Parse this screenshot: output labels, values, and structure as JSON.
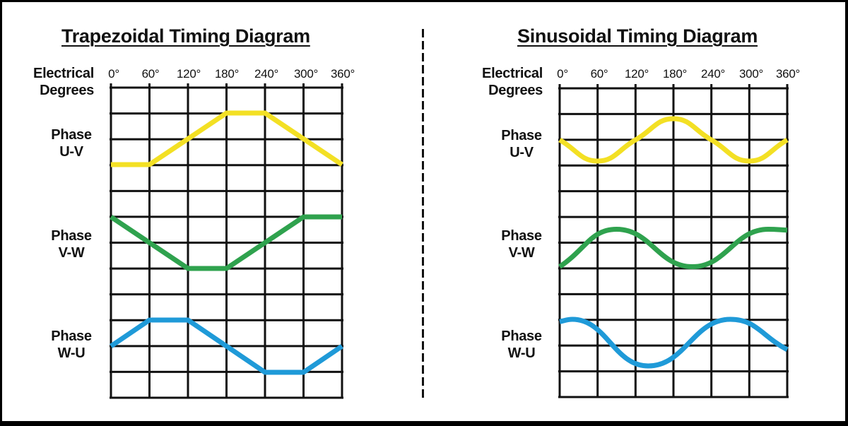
{
  "left_panel": {
    "title": "Trapezoidal Timing Diagram",
    "axis_label_line1": "Electrical",
    "axis_label_line2": "Degrees",
    "ticks": [
      "0°",
      "60°",
      "120°",
      "180°",
      "240°",
      "300°",
      "360°"
    ],
    "phases": [
      {
        "line1": "Phase",
        "line2": "U-V"
      },
      {
        "line1": "Phase",
        "line2": "V-W"
      },
      {
        "line1": "Phase",
        "line2": "W-U"
      }
    ]
  },
  "right_panel": {
    "title": "Sinusoidal Timing Diagram",
    "axis_label_line1": "Electrical",
    "axis_label_line2": "Degrees",
    "ticks": [
      "0°",
      "60°",
      "120°",
      "180°",
      "240°",
      "300°",
      "360°"
    ],
    "phases": [
      {
        "line1": "Phase",
        "line2": "U-V"
      },
      {
        "line1": "Phase",
        "line2": "V-W"
      },
      {
        "line1": "Phase",
        "line2": "W-U"
      }
    ]
  },
  "colors": {
    "phase_uv": "#F3E024",
    "phase_vw": "#2FA24E",
    "phase_wu": "#1F9AD8",
    "grid": "#111111"
  },
  "chart_data": [
    {
      "type": "line",
      "title": "Trapezoidal Timing Diagram",
      "xlabel": "Electrical Degrees",
      "x": [
        0,
        60,
        120,
        180,
        240,
        300,
        360
      ],
      "grid": {
        "columns": 6,
        "rows": 12
      },
      "series": [
        {
          "name": "Phase U-V",
          "color": "#F3E024",
          "shape": "trapezoid",
          "points": [
            [
              0,
              -1
            ],
            [
              60,
              -1
            ],
            [
              180,
              1
            ],
            [
              240,
              1
            ],
            [
              360,
              -1
            ]
          ]
        },
        {
          "name": "Phase V-W",
          "color": "#2FA24E",
          "shape": "trapezoid",
          "points": [
            [
              0,
              1
            ],
            [
              120,
              -1
            ],
            [
              180,
              -1
            ],
            [
              300,
              1
            ],
            [
              360,
              1
            ]
          ]
        },
        {
          "name": "Phase W-U",
          "color": "#1F9AD8",
          "shape": "trapezoid",
          "points": [
            [
              0,
              0
            ],
            [
              60,
              1
            ],
            [
              120,
              1
            ],
            [
              240,
              -1
            ],
            [
              300,
              -1
            ],
            [
              360,
              0
            ]
          ]
        }
      ]
    },
    {
      "type": "line",
      "title": "Sinusoidal Timing Diagram",
      "xlabel": "Electrical Degrees",
      "x": [
        0,
        60,
        120,
        180,
        240,
        300,
        360
      ],
      "grid": {
        "columns": 6,
        "rows": 12
      },
      "series": [
        {
          "name": "Phase U-V",
          "color": "#F3E024",
          "shape": "sine",
          "points": [
            [
              0,
              0
            ],
            [
              60,
              -1
            ],
            [
              120,
              0
            ],
            [
              180,
              1
            ],
            [
              240,
              0
            ],
            [
              300,
              -1
            ],
            [
              360,
              0
            ]
          ]
        },
        {
          "name": "Phase V-W",
          "color": "#2FA24E",
          "shape": "sine",
          "points": [
            [
              0,
              -1
            ],
            [
              90,
              1
            ],
            [
              210,
              -1
            ],
            [
              330,
              1
            ],
            [
              360,
              0.95
            ]
          ]
        },
        {
          "name": "Phase W-U",
          "color": "#1F9AD8",
          "shape": "sine",
          "points": [
            [
              0,
              0.9
            ],
            [
              20,
              1
            ],
            [
              140,
              -1
            ],
            [
              270,
              1
            ],
            [
              360,
              -0.3
            ]
          ]
        }
      ]
    }
  ]
}
